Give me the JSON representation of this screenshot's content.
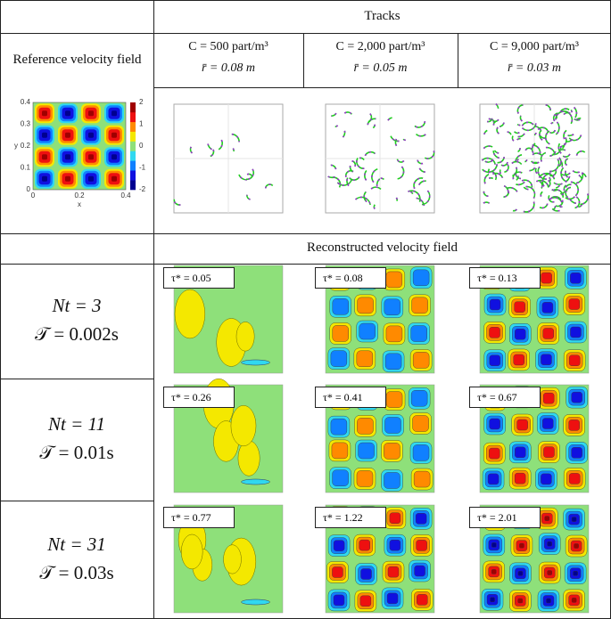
{
  "tracks_header": "Tracks",
  "reference": {
    "title": "Reference velocity field",
    "plot": {
      "xlabel": "x",
      "ylabel": "y",
      "xticks": [
        "0",
        "0.2",
        "0.4"
      ],
      "yticks": [
        "0",
        "0.1",
        "0.2",
        "0.3",
        "0.4"
      ],
      "colorbar_ticks": [
        "-2",
        "-1",
        "0",
        "1",
        "2"
      ]
    }
  },
  "columns": [
    {
      "concentration": "C = 500 part/m³",
      "radius": "r̄ = 0.08 m"
    },
    {
      "concentration": "C = 2,000 part/m³",
      "radius": "r̄ = 0.05 m"
    },
    {
      "concentration": "C = 9,000 part/m³",
      "radius": "r̄ = 0.03 m"
    }
  ],
  "reconstructed_header": "Reconstructed velocity field",
  "rows": [
    {
      "nt": "Nt = 3",
      "time": "𝒯 = 0.002s",
      "tau": [
        "τ* = 0.05",
        "τ* = 0.08",
        "τ* = 0.13"
      ]
    },
    {
      "nt": "Nt = 11",
      "time": "𝒯 = 0.01s",
      "tau": [
        "τ* = 0.26",
        "τ* = 0.41",
        "τ* = 0.67"
      ]
    },
    {
      "nt": "Nt = 31",
      "time": "𝒯 = 0.03s",
      "tau": [
        "τ* = 0.77",
        "τ* = 1.22",
        "τ* = 2.01"
      ]
    }
  ]
}
